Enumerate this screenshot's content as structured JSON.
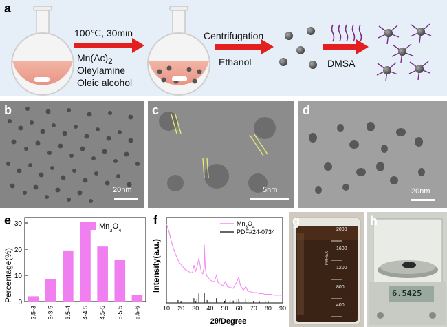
{
  "scheme": {
    "panel_label": "a",
    "step1_condition": "100℃, 30min",
    "step1_reagents": [
      "Mn(Ac)2",
      "Oleylamine",
      "Oleic alcohol"
    ],
    "step2_label": "Centrifugation",
    "step2_solvent": "Ethanol",
    "step3_reagent": "DMSA"
  },
  "tem_panels": [
    {
      "label": "b",
      "scale": "20nm"
    },
    {
      "label": "c",
      "scale": "5nm"
    },
    {
      "label": "d",
      "scale": "20nm"
    }
  ],
  "photos": [
    {
      "label": "g",
      "beaker_marks": [
        "2000",
        "1600",
        "1200",
        "800",
        "400"
      ],
      "beaker_brand": "PYREX"
    },
    {
      "label": "h",
      "balance_reading": "6.5425"
    }
  ],
  "colors": {
    "arrow": "#e31f1f",
    "histogram_bar": "#f07ff0",
    "xrd_line": "#f48af4",
    "reference_bars": "#333333",
    "nanoparticle": "#6a6a6a",
    "ligand": "#7a2a8a"
  },
  "chart_data": [
    {
      "panel_label": "e",
      "type": "bar",
      "categories": [
        "2.5-3",
        "3-3.5",
        "3.5-4",
        "4-4.5",
        "4.5-5",
        "5-5.5",
        "5.5-6"
      ],
      "series": [
        {
          "name": "Mn3O4",
          "values": [
            2,
            8.5,
            19.5,
            30.5,
            21,
            16,
            2.5
          ]
        }
      ],
      "xlabel": "",
      "ylabel": "Percentage(%)",
      "ylim": [
        0,
        30
      ],
      "yticks": [
        0,
        10,
        20,
        30
      ],
      "legend": "top-right",
      "grid": false
    },
    {
      "panel_label": "f",
      "type": "line",
      "xlabel": "2θ/Degree",
      "ylabel": "Intensity(a.u.)",
      "xlim": [
        10,
        90
      ],
      "xticks": [
        10,
        20,
        30,
        40,
        50,
        60,
        70,
        80,
        90
      ],
      "legend": "top-right",
      "grid": false,
      "series": [
        {
          "name": "Mn3O4",
          "x": [
            10,
            11,
            12,
            13,
            14,
            15,
            16,
            17,
            18,
            19,
            20,
            21,
            22,
            23,
            24,
            25,
            26,
            27,
            28,
            28.9,
            29.5,
            30,
            31,
            32.3,
            33,
            34,
            35,
            36,
            36.1,
            36.8,
            37.5,
            38,
            39,
            40,
            41,
            42,
            43,
            44.4,
            45.5,
            47,
            49,
            50.7,
            52,
            54,
            56,
            58.5,
            59.8,
            61,
            63,
            64.6,
            66,
            68,
            70,
            72,
            74,
            76,
            78,
            80,
            82,
            84,
            86,
            88,
            90
          ],
          "y": [
            0.92,
            0.88,
            0.82,
            0.75,
            0.68,
            0.63,
            0.58,
            0.54,
            0.5,
            0.47,
            0.45,
            0.43,
            0.41,
            0.39,
            0.38,
            0.37,
            0.36,
            0.35,
            0.36,
            0.44,
            0.4,
            0.37,
            0.42,
            0.52,
            0.46,
            0.36,
            0.34,
            0.42,
            0.68,
            0.4,
            0.33,
            0.31,
            0.29,
            0.27,
            0.26,
            0.25,
            0.25,
            0.32,
            0.24,
            0.22,
            0.2,
            0.25,
            0.19,
            0.18,
            0.17,
            0.25,
            0.3,
            0.2,
            0.15,
            0.19,
            0.14,
            0.13,
            0.12,
            0.12,
            0.11,
            0.11,
            0.1,
            0.1,
            0.1,
            0.09,
            0.09,
            0.09,
            0.09
          ]
        },
        {
          "name": "PDF#24-0734",
          "x": [
            18,
            28.9,
            31,
            32.3,
            36.1,
            38,
            44.4,
            50.7,
            53.8,
            56,
            58.5,
            59.8,
            64.6,
            74,
            78
          ],
          "y": [
            0.06,
            0.1,
            0.08,
            0.2,
            0.22,
            0.06,
            0.1,
            0.07,
            0.06,
            0.05,
            0.07,
            0.09,
            0.08,
            0.04,
            0.04
          ]
        }
      ]
    }
  ]
}
